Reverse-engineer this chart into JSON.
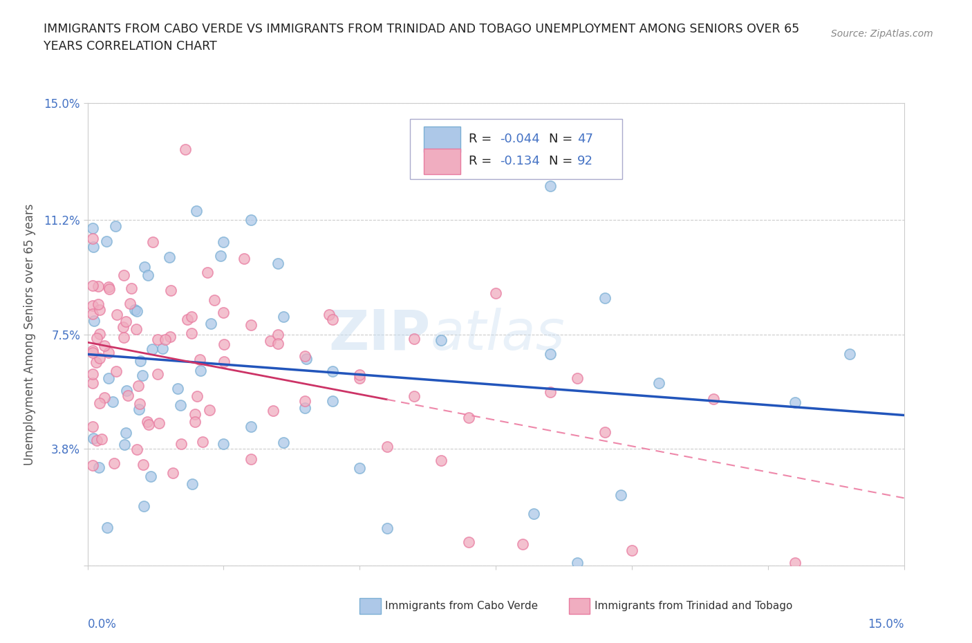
{
  "title_line1": "IMMIGRANTS FROM CABO VERDE VS IMMIGRANTS FROM TRINIDAD AND TOBAGO UNEMPLOYMENT AMONG SENIORS OVER 65",
  "title_line2": "YEARS CORRELATION CHART",
  "source": "Source: ZipAtlas.com",
  "ylabel": "Unemployment Among Seniors over 65 years",
  "cabo_verde_color": "#7bafd4",
  "cabo_verde_fill": "#adc8e8",
  "trinidad_color": "#e87ba0",
  "trinidad_fill": "#f0adc0",
  "cabo_verde_label": "Immigrants from Cabo Verde",
  "trinidad_label": "Immigrants from Trinidad and Tobago",
  "legend_text_R_cabo": "R = -0.044",
  "legend_text_N_cabo": "N = 47",
  "legend_text_R_trin": "R =  -0.134",
  "legend_text_N_trin": "N = 92",
  "watermark_part1": "ZIP",
  "watermark_part2": "atlas",
  "bg_color": "#ffffff",
  "grid_color": "#cccccc",
  "axis_color": "#4472c4",
  "title_color": "#222222",
  "text_color": "#333333",
  "ytick_vals": [
    0.0,
    0.038,
    0.075,
    0.112,
    0.15
  ],
  "ytick_labels": [
    "",
    "3.8%",
    "7.5%",
    "11.2%",
    "15.0%"
  ],
  "xlim": [
    0.0,
    0.15
  ],
  "ylim": [
    0.0,
    0.15
  ],
  "cabo_trend_color": "#2255bb",
  "trin_trend_solid_color": "#cc3366",
  "trin_trend_dash_color": "#ee88aa"
}
